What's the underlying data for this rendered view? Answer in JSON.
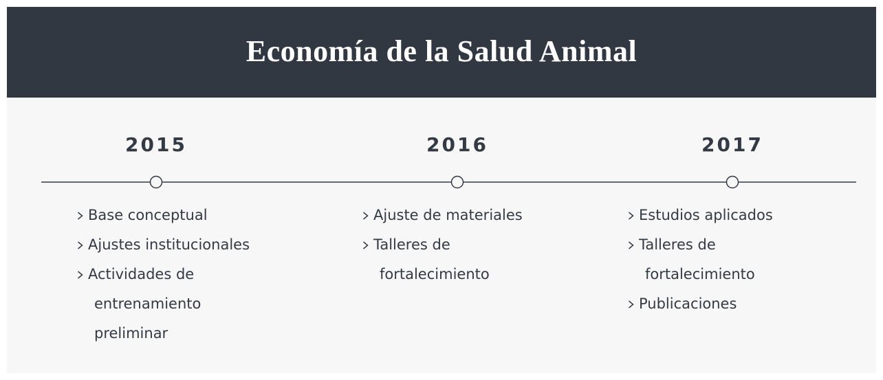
{
  "header": {
    "title": "Economía de la Salud Animal"
  },
  "timeline": [
    {
      "year": "2015",
      "items": [
        [
          "Base conceptual"
        ],
        [
          "Ajustes institucionales"
        ],
        [
          "Actividades de",
          "entrenamiento",
          "preliminar"
        ]
      ]
    },
    {
      "year": "2016",
      "items": [
        [
          "Ajuste de materiales"
        ],
        [
          "Talleres de",
          "fortalecimiento"
        ]
      ]
    },
    {
      "year": "2017",
      "items": [
        [
          "Estudios aplicados"
        ],
        [
          "Talleres de",
          "fortalecimiento"
        ],
        [
          "Publicaciones"
        ]
      ]
    }
  ]
}
